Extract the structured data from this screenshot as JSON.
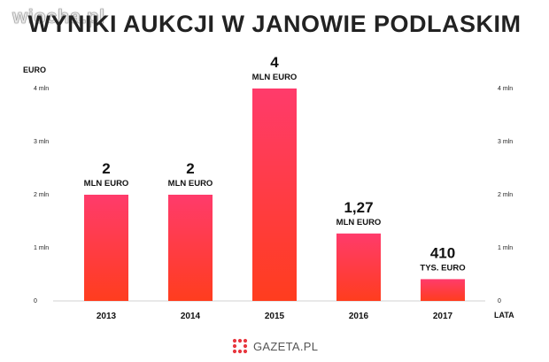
{
  "watermark": "wiocha.pl",
  "logo": {
    "text": "GAZETA.PL",
    "icon": "gazeta-dots-logo-icon",
    "color": "#e8363e"
  },
  "chart_data": {
    "type": "bar",
    "title": "WYNIKI AUKCJI W JANOWIE PODLASKIM",
    "ylabel": "EURO",
    "xlabel": "LATA",
    "categories": [
      "2013",
      "2014",
      "2015",
      "2016",
      "2017"
    ],
    "values": [
      2000000,
      2000000,
      4000000,
      1270000,
      410000
    ],
    "data_labels": [
      {
        "value": "2",
        "unit": "MLN EURO"
      },
      {
        "value": "2",
        "unit": "MLN EURO"
      },
      {
        "value": "4",
        "unit": "MLN EURO"
      },
      {
        "value": "1,27",
        "unit": "MLN EURO"
      },
      {
        "value": "410",
        "unit": "TYS. EURO"
      }
    ],
    "y_ticks": [
      {
        "value": 0,
        "label": "0"
      },
      {
        "value": 1000000,
        "label": "1 mln"
      },
      {
        "value": 2000000,
        "label": "2 mln"
      },
      {
        "value": 3000000,
        "label": "3 mln"
      },
      {
        "value": 4000000,
        "label": "4 mln"
      }
    ],
    "ylim": [
      0,
      4000000
    ],
    "grid": false,
    "colors": {
      "bar_top": "#ff3b6b",
      "bar_bottom": "#ff3d1e"
    }
  }
}
